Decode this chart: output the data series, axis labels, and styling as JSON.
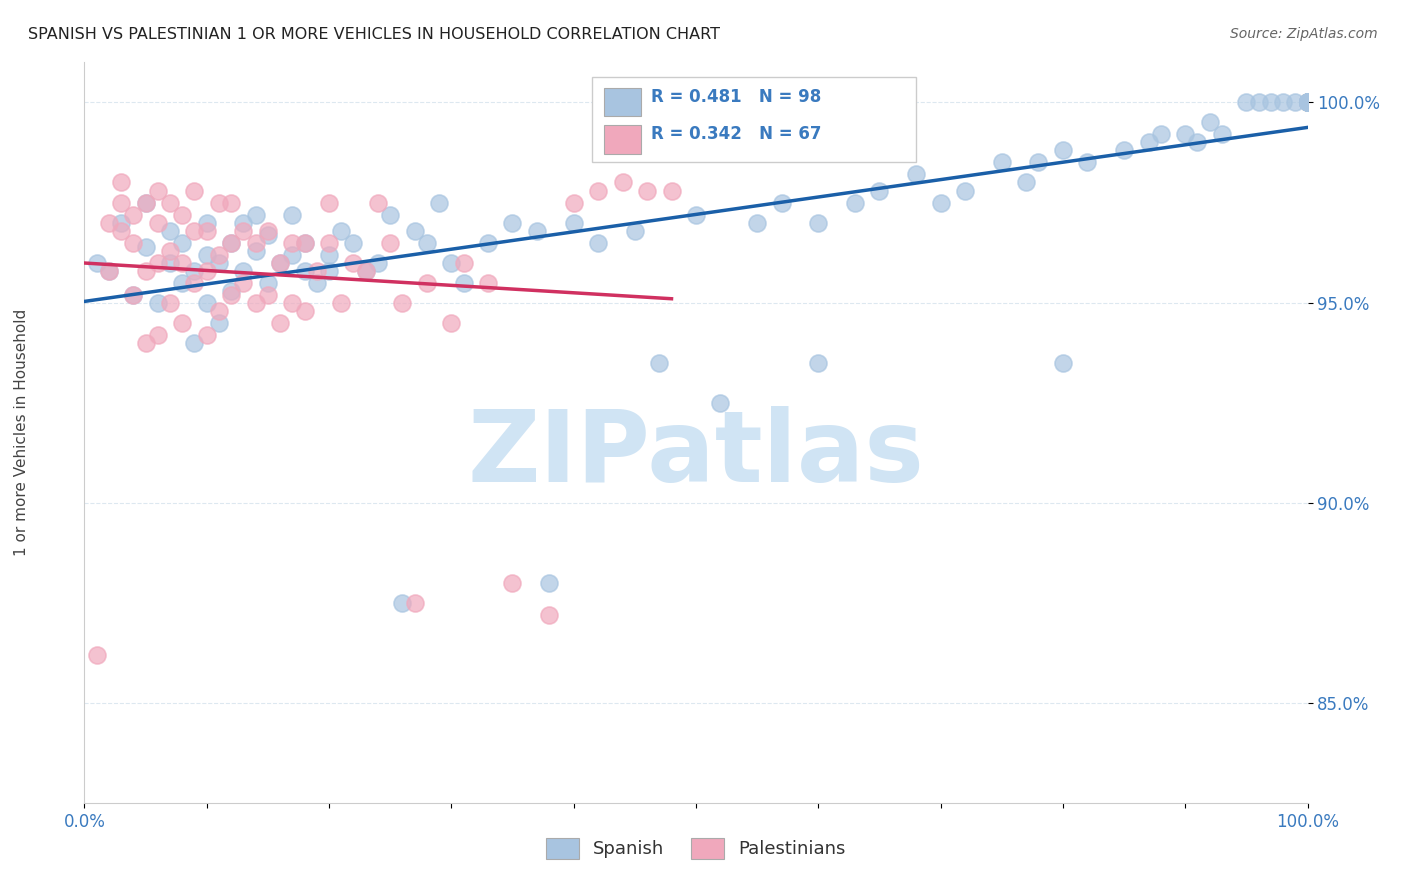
{
  "title": "SPANISH VS PALESTINIAN 1 OR MORE VEHICLES IN HOUSEHOLD CORRELATION CHART",
  "source": "Source: ZipAtlas.com",
  "ylabel": "1 or more Vehicles in Household",
  "ylabel_right_ticks": [
    "100.0%",
    "95.0%",
    "90.0%",
    "85.0%"
  ],
  "ylabel_right_values": [
    1.0,
    0.95,
    0.9,
    0.85
  ],
  "watermark": "ZIPatlas",
  "legend_blue_label": "Spanish",
  "legend_pink_label": "Palestinians",
  "corr_blue_R": 0.481,
  "corr_blue_N": 98,
  "corr_pink_R": 0.342,
  "corr_pink_N": 67,
  "blue_color": "#a8c4e0",
  "pink_color": "#f0a8bc",
  "blue_line_color": "#1a5fa8",
  "pink_line_color": "#d03060",
  "title_color": "#222222",
  "source_color": "#666666",
  "axis_label_color": "#3a7abf",
  "watermark_color": "#d0e4f4",
  "grid_color": "#dde8f0",
  "background_color": "#ffffff",
  "blue_scatter_x": [
    0.01,
    0.02,
    0.03,
    0.04,
    0.05,
    0.05,
    0.06,
    0.07,
    0.07,
    0.08,
    0.08,
    0.09,
    0.09,
    0.1,
    0.1,
    0.1,
    0.11,
    0.11,
    0.12,
    0.12,
    0.13,
    0.13,
    0.14,
    0.14,
    0.15,
    0.15,
    0.16,
    0.17,
    0.17,
    0.18,
    0.18,
    0.19,
    0.2,
    0.2,
    0.21,
    0.22,
    0.23,
    0.24,
    0.25,
    0.26,
    0.27,
    0.28,
    0.29,
    0.3,
    0.31,
    0.33,
    0.35,
    0.37,
    0.38,
    0.4,
    0.42,
    0.45,
    0.47,
    0.5,
    0.52,
    0.55,
    0.57,
    0.6,
    0.6,
    0.63,
    0.65,
    0.68,
    0.7,
    0.72,
    0.75,
    0.77,
    0.78,
    0.8,
    0.8,
    0.82,
    0.85,
    0.87,
    0.88,
    0.9,
    0.91,
    0.92,
    0.93,
    0.95,
    0.96,
    0.97,
    0.98,
    0.99,
    1.0,
    1.0,
    1.0,
    1.0,
    1.0,
    1.0,
    1.0,
    1.0,
    1.0,
    1.0,
    1.0,
    1.0,
    1.0,
    1.0,
    1.0,
    1.0
  ],
  "blue_scatter_y": [
    0.96,
    0.958,
    0.97,
    0.952,
    0.964,
    0.975,
    0.95,
    0.96,
    0.968,
    0.955,
    0.965,
    0.94,
    0.958,
    0.95,
    0.962,
    0.97,
    0.945,
    0.96,
    0.953,
    0.965,
    0.958,
    0.97,
    0.963,
    0.972,
    0.955,
    0.967,
    0.96,
    0.972,
    0.962,
    0.965,
    0.958,
    0.955,
    0.962,
    0.958,
    0.968,
    0.965,
    0.958,
    0.96,
    0.972,
    0.875,
    0.968,
    0.965,
    0.975,
    0.96,
    0.955,
    0.965,
    0.97,
    0.968,
    0.88,
    0.97,
    0.965,
    0.968,
    0.935,
    0.972,
    0.925,
    0.97,
    0.975,
    0.97,
    0.935,
    0.975,
    0.978,
    0.982,
    0.975,
    0.978,
    0.985,
    0.98,
    0.985,
    0.988,
    0.935,
    0.985,
    0.988,
    0.99,
    0.992,
    0.992,
    0.99,
    0.995,
    0.992,
    1.0,
    1.0,
    1.0,
    1.0,
    1.0,
    1.0,
    1.0,
    1.0,
    1.0,
    1.0,
    1.0,
    1.0,
    1.0,
    1.0,
    1.0,
    1.0,
    1.0,
    1.0,
    1.0,
    1.0,
    1.0
  ],
  "pink_scatter_x": [
    0.01,
    0.02,
    0.02,
    0.03,
    0.03,
    0.03,
    0.04,
    0.04,
    0.04,
    0.05,
    0.05,
    0.05,
    0.06,
    0.06,
    0.06,
    0.06,
    0.07,
    0.07,
    0.07,
    0.08,
    0.08,
    0.08,
    0.09,
    0.09,
    0.09,
    0.1,
    0.1,
    0.1,
    0.11,
    0.11,
    0.11,
    0.12,
    0.12,
    0.12,
    0.13,
    0.13,
    0.14,
    0.14,
    0.15,
    0.15,
    0.16,
    0.16,
    0.17,
    0.17,
    0.18,
    0.18,
    0.19,
    0.2,
    0.2,
    0.21,
    0.22,
    0.23,
    0.24,
    0.25,
    0.26,
    0.27,
    0.28,
    0.3,
    0.31,
    0.33,
    0.35,
    0.38,
    0.4,
    0.42,
    0.44,
    0.46,
    0.48
  ],
  "pink_scatter_y": [
    0.862,
    0.958,
    0.97,
    0.968,
    0.975,
    0.98,
    0.952,
    0.965,
    0.972,
    0.94,
    0.958,
    0.975,
    0.942,
    0.96,
    0.97,
    0.978,
    0.95,
    0.963,
    0.975,
    0.945,
    0.96,
    0.972,
    0.955,
    0.968,
    0.978,
    0.942,
    0.958,
    0.968,
    0.948,
    0.962,
    0.975,
    0.952,
    0.965,
    0.975,
    0.955,
    0.968,
    0.95,
    0.965,
    0.952,
    0.968,
    0.945,
    0.96,
    0.95,
    0.965,
    0.948,
    0.965,
    0.958,
    0.965,
    0.975,
    0.95,
    0.96,
    0.958,
    0.975,
    0.965,
    0.95,
    0.875,
    0.955,
    0.945,
    0.96,
    0.955,
    0.88,
    0.872,
    0.975,
    0.978,
    0.98,
    0.978,
    0.978
  ]
}
